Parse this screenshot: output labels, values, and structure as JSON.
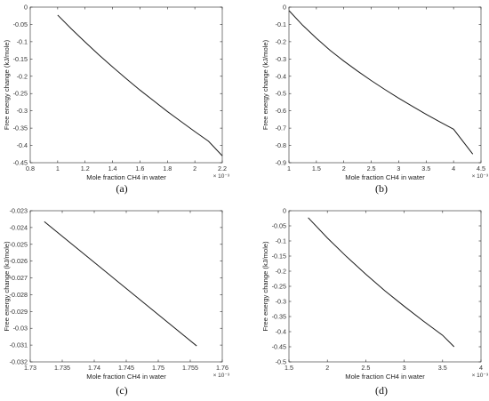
{
  "chart_data": [
    {
      "type": "line",
      "caption": "(a)",
      "xlabel": "Mole fraction CH4 in water",
      "ylabel": "Free energy change (kJ/mole)",
      "x_exponent": "× 10⁻³",
      "xlim": [
        0.8,
        2.2
      ],
      "ylim": [
        -0.45,
        0
      ],
      "xticks": [
        "0.8",
        "1",
        "1.2",
        "1.4",
        "1.6",
        "1.8",
        "2",
        "2.2"
      ],
      "yticks": [
        "0",
        "-0.05",
        "-0.1",
        "-0.15",
        "-0.2",
        "-0.25",
        "-0.3",
        "-0.35",
        "-0.4",
        "-0.45"
      ],
      "series": [
        {
          "x": [
            1.0,
            1.1,
            1.2,
            1.3,
            1.4,
            1.5,
            1.6,
            1.7,
            1.8,
            1.9,
            2.0,
            2.1,
            2.2
          ],
          "y": [
            -0.023,
            -0.063,
            -0.101,
            -0.138,
            -0.173,
            -0.207,
            -0.24,
            -0.271,
            -0.302,
            -0.331,
            -0.36,
            -0.388,
            -0.43
          ]
        }
      ]
    },
    {
      "type": "line",
      "caption": "(b)",
      "xlabel": "Mole fraction CH4 in water",
      "ylabel": "Free energy change (kJ/mole)",
      "x_exponent": "× 10⁻³",
      "xlim": [
        1,
        4.5
      ],
      "ylim": [
        -0.9,
        0
      ],
      "xticks": [
        "1",
        "1.5",
        "2",
        "2.5",
        "3",
        "3.5",
        "4",
        "4.5"
      ],
      "yticks": [
        "0",
        "-0.1",
        "-0.2",
        "-0.3",
        "-0.4",
        "-0.5",
        "-0.6",
        "-0.7",
        "-0.8",
        "-0.9"
      ],
      "series": [
        {
          "x": [
            1.0,
            1.25,
            1.5,
            1.75,
            2.0,
            2.25,
            2.5,
            2.75,
            3.0,
            3.25,
            3.5,
            3.75,
            4.0,
            4.35
          ],
          "y": [
            -0.02,
            -0.105,
            -0.18,
            -0.25,
            -0.312,
            -0.37,
            -0.425,
            -0.477,
            -0.527,
            -0.574,
            -0.62,
            -0.664,
            -0.706,
            -0.85
          ]
        }
      ]
    },
    {
      "type": "line",
      "caption": "(c)",
      "xlabel": "Mole fraction CH4 in water",
      "ylabel": "Free energy change (kJ/mole)",
      "x_exponent": "× 10⁻³",
      "xlim": [
        1.73,
        1.76
      ],
      "ylim": [
        -0.032,
        -0.023
      ],
      "xticks": [
        "1.73",
        "1.735",
        "1.74",
        "1.745",
        "1.75",
        "1.755",
        "1.76"
      ],
      "yticks": [
        "-0.023",
        "-0.024",
        "-0.025",
        "-0.026",
        "-0.027",
        "-0.028",
        "-0.029",
        "-0.03",
        "-0.031",
        "-0.032"
      ],
      "series": [
        {
          "x": [
            1.7322,
            1.756
          ],
          "y": [
            -0.02365,
            -0.03105
          ]
        }
      ]
    },
    {
      "type": "line",
      "caption": "(d)",
      "xlabel": "Mole fraction CH4 in water",
      "ylabel": "Free energy change (kJ/mole)",
      "x_exponent": "× 10⁻³",
      "xlim": [
        1.5,
        4
      ],
      "ylim": [
        -0.5,
        0
      ],
      "xticks": [
        "1.5",
        "2",
        "2.5",
        "3",
        "3.5",
        "4"
      ],
      "yticks": [
        "0",
        "-0.05",
        "-0.1",
        "-0.15",
        "-0.2",
        "-0.25",
        "-0.3",
        "-0.35",
        "-0.4",
        "-0.45",
        "-0.5"
      ],
      "series": [
        {
          "x": [
            1.75,
            2.0,
            2.25,
            2.5,
            2.75,
            3.0,
            3.25,
            3.5,
            3.65
          ],
          "y": [
            -0.023,
            -0.09,
            -0.152,
            -0.21,
            -0.265,
            -0.316,
            -0.365,
            -0.412,
            -0.45
          ]
        }
      ]
    }
  ]
}
